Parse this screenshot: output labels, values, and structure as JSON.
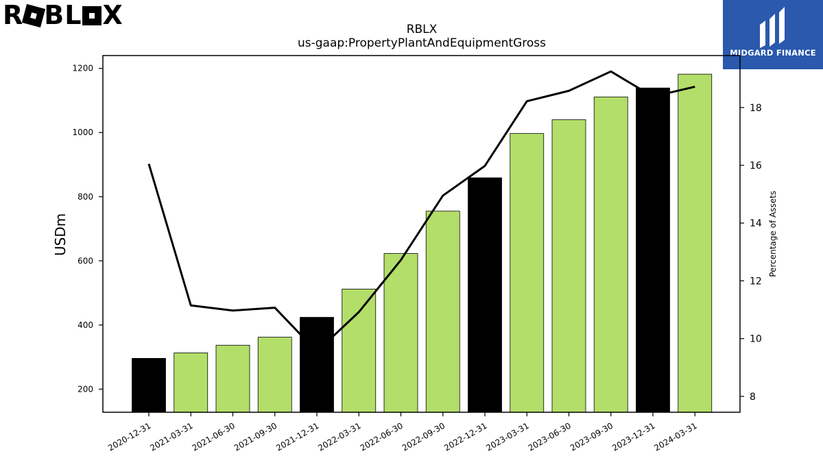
{
  "brand": {
    "logo_text": "ROBLOX",
    "badge_text": "MIDGARD FINANCE",
    "badge_color": "#2a59ad"
  },
  "chart_data": {
    "type": "bar",
    "title": "RBLX",
    "subtitle": "us-gaap:PropertyPlantAndEquipmentGross",
    "ylabel": "USDm",
    "y2label": "Percentage of Assets",
    "categories": [
      "2020-12-31",
      "2021-03-31",
      "2021-06-30",
      "2021-09-30",
      "2021-12-31",
      "2022-03-31",
      "2022-06-30",
      "2022-09-30",
      "2022-12-31",
      "2023-03-31",
      "2023-06-30",
      "2023-09-30",
      "2023-12-31",
      "2024-03-31"
    ],
    "series": [
      {
        "type": "bar",
        "axis": "left",
        "values": [
          296,
          313,
          337,
          362,
          424,
          512,
          623,
          755,
          859,
          997,
          1040,
          1111,
          1139,
          1182
        ],
        "colors": [
          "#000000",
          "#b3de69",
          "#b3de69",
          "#b3de69",
          "#000000",
          "#b3de69",
          "#b3de69",
          "#b3de69",
          "#000000",
          "#b3de69",
          "#b3de69",
          "#b3de69",
          "#000000",
          "#b3de69"
        ]
      },
      {
        "type": "line",
        "axis": "right",
        "color": "#000000",
        "values": [
          16.05,
          11.15,
          10.97,
          11.07,
          9.55,
          10.92,
          12.72,
          14.95,
          15.98,
          18.22,
          18.58,
          19.25,
          18.38,
          18.72
        ]
      }
    ],
    "ylim": [
      128,
      1240
    ],
    "y2lim": [
      7.45,
      19.8
    ],
    "yticks": [
      200,
      400,
      600,
      800,
      1000,
      1200
    ],
    "y2ticks": [
      8,
      10,
      12,
      14,
      16,
      18
    ],
    "grid": false,
    "legend": "none"
  }
}
